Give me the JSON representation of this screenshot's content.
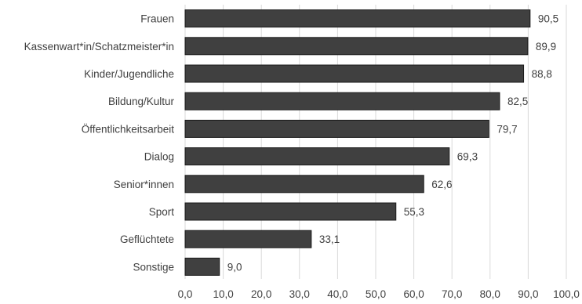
{
  "chart_data": {
    "type": "bar",
    "orientation": "horizontal",
    "title": "",
    "xlabel": "",
    "ylabel": "",
    "categories": [
      "Frauen",
      "Kassenwart*in/Schatzmeister*in",
      "Kinder/Jugendliche",
      "Bildung/Kultur",
      "Öffentlichkeitsarbeit",
      "Dialog",
      "Senior*innen",
      "Sport",
      "Geflüchtete",
      "Sonstige"
    ],
    "values": [
      90.5,
      89.9,
      88.8,
      82.5,
      79.7,
      69.3,
      62.6,
      55.3,
      33.1,
      9.0
    ],
    "value_labels": [
      "90,5",
      "89,9",
      "88,8",
      "82,5",
      "79,7",
      "69,3",
      "62,6",
      "55,3",
      "33,1",
      "9,0"
    ],
    "xlim": [
      0,
      100
    ],
    "xticks": [
      0,
      10,
      20,
      30,
      40,
      50,
      60,
      70,
      80,
      90,
      100
    ],
    "xtick_labels": [
      "0,0",
      "10,0",
      "20,0",
      "30,0",
      "40,0",
      "50,0",
      "60,0",
      "70,0",
      "80,0",
      "90,0",
      "100,0"
    ],
    "grid": true,
    "legend": "none",
    "colors": {
      "bar": "#404040",
      "bar_border": "#1a1a1a",
      "grid": "#d9d9d9",
      "text": "#404040"
    }
  }
}
